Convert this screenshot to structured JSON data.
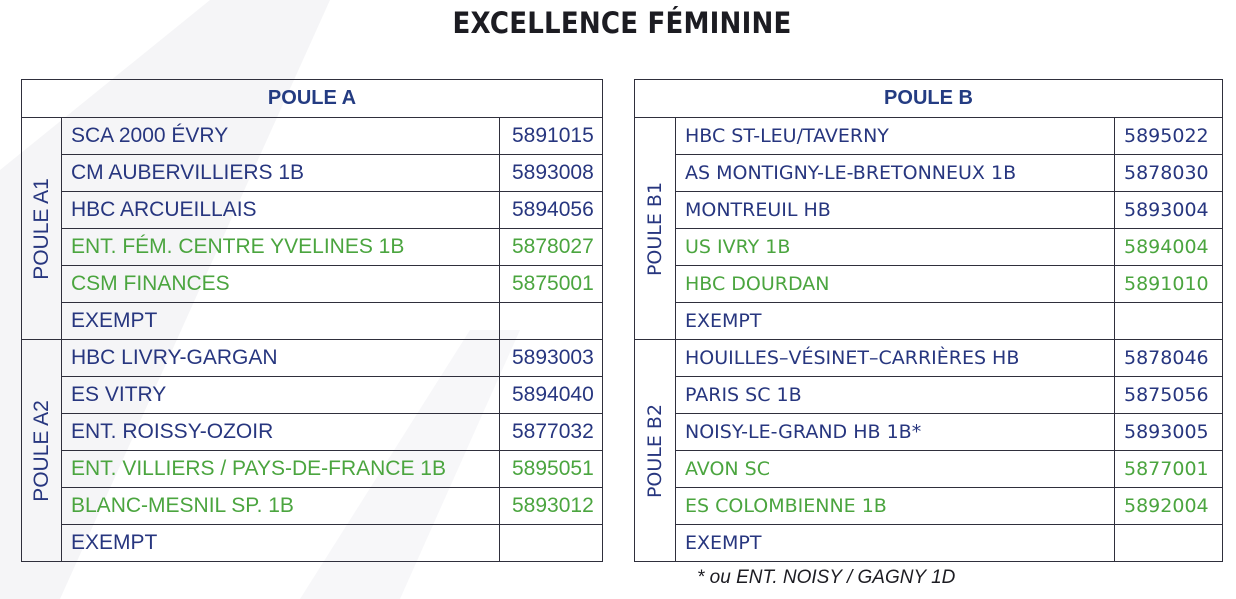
{
  "title": "EXCELLENCE FÉMININE",
  "pools": [
    {
      "header": "POULE A",
      "groups": [
        {
          "label": "POULE A1",
          "rows": [
            {
              "name": "SCA 2000 ÉVRY",
              "code": "5891015",
              "highlight": false
            },
            {
              "name": "CM AUBERVILLIERS 1B",
              "code": "5893008",
              "highlight": false
            },
            {
              "name": "HBC ARCUEILLAIS",
              "code": "5894056",
              "highlight": false
            },
            {
              "name": "ENT. FÉM. CENTRE YVELINES 1B",
              "code": "5878027",
              "highlight": true
            },
            {
              "name": "CSM FINANCES",
              "code": "5875001",
              "highlight": true
            },
            {
              "name": "EXEMPT",
              "code": "",
              "highlight": false
            }
          ]
        },
        {
          "label": "POULE A2",
          "rows": [
            {
              "name": "HBC LIVRY-GARGAN",
              "code": "5893003",
              "highlight": false
            },
            {
              "name": "ES VITRY",
              "code": "5894040",
              "highlight": false
            },
            {
              "name": "ENT. ROISSY-OZOIR",
              "code": "5877032",
              "highlight": false
            },
            {
              "name": "ENT. VILLIERS / PAYS-DE-FRANCE 1B",
              "code": "5895051",
              "highlight": true
            },
            {
              "name": "BLANC-MESNIL SP.  1B",
              "code": "5893012",
              "highlight": true
            },
            {
              "name": "EXEMPT",
              "code": "",
              "highlight": false
            }
          ]
        }
      ]
    },
    {
      "header": "POULE B",
      "groups": [
        {
          "label": "POULE B1",
          "rows": [
            {
              "name": "HBC ST-LEU/TAVERNY",
              "code": "5895022",
              "highlight": false
            },
            {
              "name": "AS MONTIGNY-LE-BRETONNEUX 1B",
              "code": "5878030",
              "highlight": false
            },
            {
              "name": "MONTREUIL HB",
              "code": "5893004",
              "highlight": false
            },
            {
              "name": "US IVRY 1B",
              "code": "5894004",
              "highlight": true
            },
            {
              "name": "HBC DOURDAN",
              "code": "5891010",
              "highlight": true
            },
            {
              "name": "EXEMPT",
              "code": "",
              "highlight": false
            }
          ]
        },
        {
          "label": "POULE B2",
          "rows": [
            {
              "name": "HOUILLES–VÉSINET–CARRIÈRES HB",
              "code": "5878046",
              "highlight": false
            },
            {
              "name": "PARIS SC 1B",
              "code": "5875056",
              "highlight": false
            },
            {
              "name": "NOISY-LE-GRAND HB 1B*",
              "code": "5893005",
              "highlight": false
            },
            {
              "name": "AVON SC",
              "code": "5877001",
              "highlight": true
            },
            {
              "name": "ES COLOMBIENNE 1B",
              "code": "5892004",
              "highlight": true
            },
            {
              "name": "EXEMPT",
              "code": "",
              "highlight": false
            }
          ]
        }
      ]
    }
  ],
  "footnote": "* ou  ENT. NOISY / GAGNY 1D",
  "colors": {
    "team_text": "#27367f",
    "highlight_text": "#4ba53f",
    "header_text": "#243c82",
    "border": "#2f2f3c",
    "title_text": "#1c1c22"
  }
}
